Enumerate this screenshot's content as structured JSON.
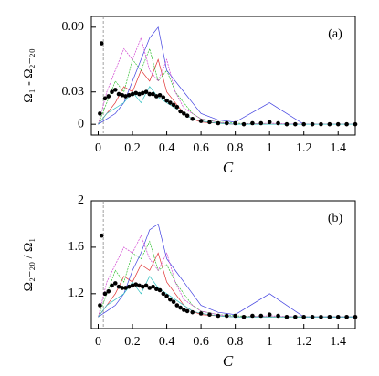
{
  "chart_data": [
    {
      "type": "line",
      "label": "(a)",
      "xlabel": "C",
      "ylabel": "Ω₁ - Ω₂₋₂₀",
      "xlim": [
        -0.04,
        1.5
      ],
      "ylim": [
        -0.01,
        0.1
      ],
      "xticks": [
        0,
        0.2,
        0.4,
        0.6,
        0.8,
        1,
        1.2,
        1.4
      ],
      "yticks": [
        0,
        0.03,
        0.09
      ],
      "vline": 0.03,
      "x": [
        0,
        0.05,
        0.1,
        0.15,
        0.2,
        0.25,
        0.3,
        0.35,
        0.4,
        0.45,
        0.5,
        0.55,
        0.6,
        0.7,
        0.8,
        1.0,
        1.2,
        1.5
      ],
      "series": [
        {
          "color": "#e03030",
          "values": [
            0,
            0.01,
            0.02,
            0.035,
            0.03,
            0.05,
            0.04,
            0.06,
            0.03,
            0.02,
            0.01,
            0.005,
            0.002,
            0.001,
            0,
            0,
            0,
            0
          ]
        },
        {
          "color": "#30c030",
          "values": [
            0,
            0.02,
            0.04,
            0.03,
            0.06,
            0.05,
            0.07,
            0.04,
            0.05,
            0.03,
            0.02,
            0.01,
            0.005,
            0.002,
            0.001,
            0,
            0,
            0
          ]
        },
        {
          "color": "#4040e0",
          "values": [
            0,
            0.005,
            0.01,
            0.02,
            0.04,
            0.06,
            0.08,
            0.09,
            0.05,
            0.04,
            0.03,
            0.02,
            0.01,
            0.004,
            0.002,
            0.02,
            0,
            0
          ]
        },
        {
          "color": "#d040d0",
          "values": [
            0,
            0.03,
            0.05,
            0.07,
            0.06,
            0.08,
            0.05,
            0.04,
            0.06,
            0.03,
            0.015,
            0.01,
            0.005,
            0.002,
            0,
            0.001,
            0,
            0
          ]
        },
        {
          "color": "#30c0c0",
          "values": [
            0,
            0.01,
            0.015,
            0.02,
            0.03,
            0.02,
            0.035,
            0.025,
            0.02,
            0.015,
            0.01,
            0.005,
            0.003,
            0.001,
            0,
            0,
            0,
            0
          ]
        }
      ],
      "dots": {
        "color": "#000000",
        "x": [
          0.01,
          0.02,
          0.04,
          0.06,
          0.08,
          0.1,
          0.12,
          0.14,
          0.16,
          0.18,
          0.2,
          0.22,
          0.24,
          0.26,
          0.28,
          0.3,
          0.32,
          0.34,
          0.36,
          0.38,
          0.4,
          0.42,
          0.44,
          0.46,
          0.48,
          0.5,
          0.52,
          0.55,
          0.6,
          0.65,
          0.7,
          0.75,
          0.8,
          0.85,
          0.9,
          0.95,
          1.0,
          1.05,
          1.1,
          1.15,
          1.2,
          1.25,
          1.3,
          1.35,
          1.4,
          1.45,
          1.5
        ],
        "values": [
          0.01,
          0.075,
          0.024,
          0.026,
          0.03,
          0.032,
          0.028,
          0.027,
          0.026,
          0.027,
          0.028,
          0.029,
          0.028,
          0.029,
          0.03,
          0.028,
          0.028,
          0.026,
          0.027,
          0.025,
          0.022,
          0.02,
          0.018,
          0.016,
          0.012,
          0.01,
          0.008,
          0.005,
          0.003,
          0.002,
          0.001,
          0.001,
          0.001,
          0,
          0.001,
          0.001,
          0.002,
          0.001,
          0,
          0,
          0,
          0,
          0,
          0,
          0,
          0,
          0
        ]
      }
    },
    {
      "type": "line",
      "label": "(b)",
      "xlabel": "C",
      "ylabel": "Ω₂₋₂₀ / Ω₁",
      "xlim": [
        -0.04,
        1.5
      ],
      "ylim": [
        0.9,
        2
      ],
      "xticks": [
        0,
        0.2,
        0.4,
        0.6,
        0.8,
        1,
        1.2,
        1.4
      ],
      "yticks": [
        1.2,
        1.6,
        2
      ],
      "vline": 0.03,
      "x": [
        0,
        0.05,
        0.1,
        0.15,
        0.2,
        0.25,
        0.3,
        0.35,
        0.4,
        0.45,
        0.5,
        0.55,
        0.6,
        0.7,
        0.8,
        1.0,
        1.2,
        1.5
      ],
      "series": [
        {
          "color": "#e03030",
          "values": [
            1,
            1.1,
            1.2,
            1.35,
            1.3,
            1.45,
            1.4,
            1.55,
            1.3,
            1.2,
            1.1,
            1.05,
            1.02,
            1.01,
            1,
            1,
            1,
            1
          ]
        },
        {
          "color": "#30c030",
          "values": [
            1,
            1.2,
            1.4,
            1.3,
            1.55,
            1.5,
            1.65,
            1.4,
            1.45,
            1.3,
            1.2,
            1.1,
            1.05,
            1.02,
            1.01,
            1,
            1,
            1
          ]
        },
        {
          "color": "#4040e0",
          "values": [
            1,
            1.05,
            1.1,
            1.2,
            1.4,
            1.55,
            1.75,
            1.8,
            1.5,
            1.4,
            1.3,
            1.2,
            1.1,
            1.04,
            1.02,
            1.2,
            1,
            1
          ]
        },
        {
          "color": "#d040d0",
          "values": [
            1,
            1.3,
            1.45,
            1.6,
            1.55,
            1.7,
            1.5,
            1.4,
            1.55,
            1.3,
            1.15,
            1.1,
            1.05,
            1.02,
            1,
            1.01,
            1,
            1
          ]
        },
        {
          "color": "#30c0c0",
          "values": [
            1,
            1.1,
            1.15,
            1.2,
            1.3,
            1.2,
            1.35,
            1.25,
            1.2,
            1.15,
            1.1,
            1.05,
            1.03,
            1.01,
            1,
            1,
            1,
            1
          ]
        }
      ],
      "dots": {
        "color": "#000000",
        "x": [
          0.01,
          0.02,
          0.04,
          0.06,
          0.08,
          0.1,
          0.12,
          0.14,
          0.16,
          0.18,
          0.2,
          0.22,
          0.24,
          0.26,
          0.28,
          0.3,
          0.32,
          0.34,
          0.36,
          0.38,
          0.4,
          0.42,
          0.44,
          0.46,
          0.48,
          0.5,
          0.52,
          0.55,
          0.6,
          0.65,
          0.7,
          0.75,
          0.8,
          0.85,
          0.9,
          0.95,
          1.0,
          1.05,
          1.1,
          1.15,
          1.2,
          1.25,
          1.3,
          1.35,
          1.4,
          1.45,
          1.5
        ],
        "values": [
          1.1,
          1.7,
          1.2,
          1.22,
          1.27,
          1.29,
          1.26,
          1.25,
          1.25,
          1.26,
          1.27,
          1.28,
          1.27,
          1.26,
          1.27,
          1.25,
          1.26,
          1.24,
          1.23,
          1.2,
          1.18,
          1.15,
          1.13,
          1.1,
          1.08,
          1.06,
          1.05,
          1.04,
          1.03,
          1.02,
          1.01,
          1.01,
          1.01,
          1,
          1.01,
          1.01,
          1.02,
          1.01,
          1,
          1,
          1,
          1,
          1,
          1,
          1,
          1,
          1
        ]
      }
    }
  ]
}
